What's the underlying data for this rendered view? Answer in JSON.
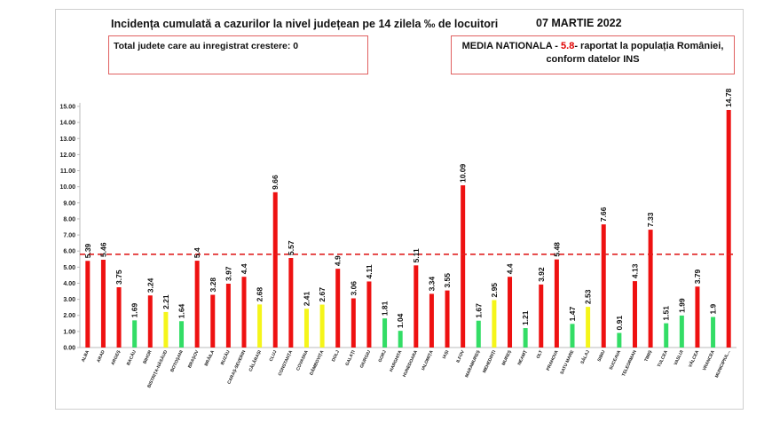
{
  "header": {
    "title": "Incidența cumulată a cazurilor la nivel județean pe 14 zilela ‰ de locuitori",
    "date": "07 MARTIE 2022"
  },
  "info_left": {
    "text": "Total judete care au inregistrat crestere: 0"
  },
  "info_right": {
    "prefix": "MEDIA NATIONALA - ",
    "value": "5.8",
    "suffix": "-  raportat la populația României,",
    "line2": "conform datelor INS"
  },
  "colors": {
    "red": "#ee1111",
    "yellow": "#f5f51a",
    "green": "#33dd66",
    "reference_line": "#e02020"
  },
  "chart_data": {
    "type": "bar",
    "title": "Incidența cumulată a cazurilor la nivel județean pe 14 zilela ‰ de locuitori",
    "xlabel": "",
    "ylabel": "",
    "ylim": [
      0,
      15
    ],
    "yticks": [
      "0.00",
      "1.00",
      "2.00",
      "3.00",
      "4.00",
      "5.00",
      "6.00",
      "7.00",
      "8.00",
      "9.00",
      "10.00",
      "11.00",
      "12.00",
      "13.00",
      "14.00",
      "15.00"
    ],
    "grid": false,
    "reference_line": {
      "value": 5.8,
      "style": "dashed"
    },
    "categories": [
      "ALBA",
      "ARAD",
      "ARGEȘ",
      "BACĂU",
      "BIHOR",
      "BISTRIȚA-NĂSĂUD",
      "BOTOȘANI",
      "BRAȘOV",
      "BRĂILA",
      "BUZĂU",
      "CARAȘ-SEVERIN",
      "CĂLĂRAȘI",
      "CLUJ",
      "CONSTANȚA",
      "COVASNA",
      "DÂMBOVIȚA",
      "DOLJ",
      "GALAȚI",
      "GIURGIU",
      "GORJ",
      "HARGHITA",
      "HUNEDOARA",
      "IALOMIȚA",
      "IAȘI",
      "ILFOV",
      "MARAMUREȘ",
      "MEHEDINȚI",
      "MUREȘ",
      "NEAMȚ",
      "OLT",
      "PRAHOVA",
      "SATU MARE",
      "SĂLAJ",
      "SIBIU",
      "SUCEAVA",
      "TELEORMAN",
      "TIMIȘ",
      "TULCEA",
      "VASLUI",
      "VÂLCEA",
      "VRANCEA",
      "MUNICIPIUL..."
    ],
    "values": [
      5.39,
      5.46,
      3.75,
      1.69,
      3.24,
      2.21,
      1.64,
      5.4,
      3.28,
      3.97,
      4.4,
      2.68,
      9.66,
      5.57,
      2.41,
      2.67,
      4.9,
      3.06,
      4.11,
      1.81,
      1.04,
      5.11,
      3.34,
      3.55,
      10.09,
      1.67,
      2.95,
      4.4,
      1.21,
      3.92,
      5.48,
      1.47,
      2.53,
      7.66,
      0.91,
      4.13,
      7.33,
      1.51,
      1.99,
      3.79,
      1.9,
      14.78
    ],
    "labels": [
      "5.39",
      "5.46",
      "3.75",
      "1.69",
      "3.24",
      "2.21",
      "1.64",
      "5.4",
      "3.28",
      "3.97",
      "4.4",
      "2.68",
      "9.66",
      "5.57",
      "2.41",
      "2.67",
      "4.9",
      "3.06",
      "4.11",
      "1.81",
      "1.04",
      "5.11",
      "3.34",
      "3.55",
      "10.09",
      "1.67",
      "2.95",
      "4.4",
      "1.21",
      "3.92",
      "5.48",
      "1.47",
      "2.53",
      "7.66",
      "0.91",
      "4.13",
      "7.33",
      "1.51",
      "1.99",
      "3.79",
      "1.9",
      "14.78"
    ],
    "bar_colors": [
      "red",
      "red",
      "red",
      "green",
      "red",
      "yellow",
      "green",
      "red",
      "red",
      "red",
      "red",
      "yellow",
      "red",
      "red",
      "yellow",
      "yellow",
      "red",
      "red",
      "red",
      "green",
      "green",
      "red",
      "red",
      "red",
      "red",
      "green",
      "yellow",
      "red",
      "green",
      "red",
      "red",
      "green",
      "yellow",
      "red",
      "green",
      "red",
      "red",
      "green",
      "green",
      "red",
      "green",
      "red"
    ]
  }
}
